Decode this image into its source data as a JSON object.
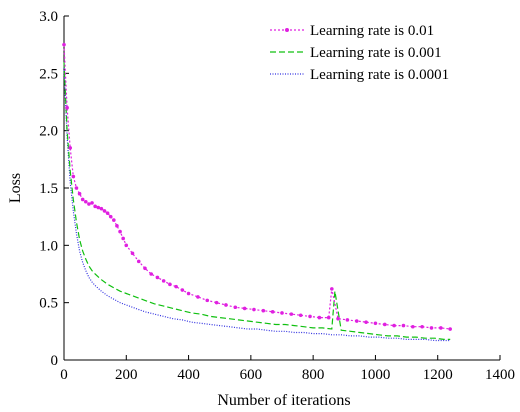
{
  "chart_data": {
    "type": "line",
    "xlabel": "Number of iterations",
    "ylabel": "Loss",
    "xlim": [
      0,
      1400
    ],
    "ylim": [
      0,
      3.0
    ],
    "xticks": [
      0,
      200,
      400,
      600,
      800,
      1000,
      1200,
      1400
    ],
    "yticks": [
      0,
      0.5,
      1.0,
      1.5,
      2.0,
      2.5,
      3.0
    ],
    "xtick_labels": [
      "0",
      "200",
      "400",
      "600",
      "800",
      "1000",
      "1200",
      "1400"
    ],
    "ytick_labels": [
      "0",
      "0.5",
      "1.0",
      "1.5",
      "2.0",
      "2.5",
      "3.0"
    ],
    "grid": false,
    "legend_position": "top-right",
    "series": [
      {
        "name": "Learning rate is 0.01",
        "color": "#e020e0",
        "style": "dotted-with-markers",
        "x": [
          0,
          10,
          20,
          30,
          40,
          50,
          60,
          70,
          80,
          90,
          100,
          110,
          120,
          130,
          140,
          150,
          160,
          170,
          180,
          190,
          200,
          220,
          240,
          260,
          280,
          300,
          320,
          340,
          360,
          380,
          400,
          430,
          460,
          490,
          520,
          550,
          580,
          610,
          640,
          670,
          700,
          730,
          760,
          790,
          820,
          850,
          860,
          880,
          910,
          940,
          970,
          1000,
          1030,
          1060,
          1090,
          1120,
          1150,
          1180,
          1210,
          1240
        ],
        "y": [
          2.75,
          2.2,
          1.85,
          1.6,
          1.5,
          1.45,
          1.4,
          1.38,
          1.36,
          1.37,
          1.34,
          1.33,
          1.32,
          1.3,
          1.28,
          1.25,
          1.22,
          1.17,
          1.12,
          1.06,
          1.0,
          0.93,
          0.86,
          0.8,
          0.75,
          0.72,
          0.69,
          0.66,
          0.64,
          0.61,
          0.58,
          0.55,
          0.52,
          0.5,
          0.48,
          0.46,
          0.45,
          0.44,
          0.43,
          0.42,
          0.41,
          0.4,
          0.39,
          0.38,
          0.37,
          0.37,
          0.62,
          0.36,
          0.35,
          0.34,
          0.33,
          0.32,
          0.31,
          0.3,
          0.3,
          0.29,
          0.29,
          0.28,
          0.28,
          0.27
        ]
      },
      {
        "name": "Learning rate is 0.001",
        "color": "#10c010",
        "style": "dashed",
        "x": [
          0,
          10,
          20,
          30,
          40,
          50,
          60,
          70,
          80,
          90,
          100,
          120,
          140,
          160,
          180,
          200,
          230,
          260,
          290,
          320,
          350,
          380,
          410,
          440,
          470,
          500,
          530,
          560,
          590,
          620,
          650,
          680,
          710,
          740,
          770,
          800,
          830,
          860,
          870,
          890,
          920,
          950,
          980,
          1010,
          1040,
          1070,
          1100,
          1130,
          1160,
          1190,
          1220,
          1240
        ],
        "y": [
          2.6,
          2.0,
          1.65,
          1.4,
          1.2,
          1.05,
          0.95,
          0.88,
          0.82,
          0.78,
          0.75,
          0.7,
          0.66,
          0.63,
          0.6,
          0.58,
          0.55,
          0.52,
          0.49,
          0.47,
          0.45,
          0.43,
          0.41,
          0.4,
          0.38,
          0.37,
          0.36,
          0.35,
          0.34,
          0.33,
          0.32,
          0.31,
          0.31,
          0.3,
          0.29,
          0.28,
          0.28,
          0.27,
          0.6,
          0.26,
          0.25,
          0.24,
          0.23,
          0.22,
          0.21,
          0.21,
          0.2,
          0.2,
          0.19,
          0.19,
          0.18,
          0.18
        ]
      },
      {
        "name": "Learning rate is 0.0001",
        "color": "#3030e0",
        "style": "fine-dotted",
        "x": [
          0,
          10,
          20,
          30,
          40,
          50,
          60,
          70,
          80,
          90,
          100,
          120,
          140,
          160,
          180,
          200,
          230,
          260,
          290,
          320,
          350,
          380,
          410,
          440,
          470,
          500,
          530,
          560,
          590,
          620,
          650,
          680,
          710,
          740,
          770,
          800,
          830,
          860,
          890,
          920,
          950,
          980,
          1010,
          1040,
          1070,
          1100,
          1130,
          1160,
          1190,
          1220,
          1240
        ],
        "y": [
          2.55,
          1.95,
          1.55,
          1.3,
          1.1,
          0.95,
          0.85,
          0.78,
          0.72,
          0.68,
          0.65,
          0.6,
          0.56,
          0.53,
          0.5,
          0.48,
          0.45,
          0.42,
          0.4,
          0.38,
          0.36,
          0.35,
          0.33,
          0.32,
          0.31,
          0.3,
          0.29,
          0.28,
          0.27,
          0.27,
          0.26,
          0.25,
          0.25,
          0.24,
          0.24,
          0.23,
          0.23,
          0.22,
          0.22,
          0.21,
          0.21,
          0.2,
          0.2,
          0.19,
          0.19,
          0.18,
          0.18,
          0.18,
          0.17,
          0.17,
          0.17
        ]
      }
    ]
  }
}
